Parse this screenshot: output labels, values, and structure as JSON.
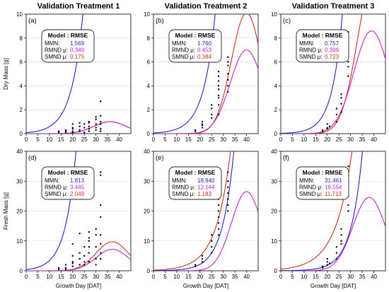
{
  "chart_data": [
    {
      "panel_label": "(a)",
      "title": "Validation Treatment 1",
      "type": "scatter",
      "ylabel": "Dry Mass [g]",
      "xlabel": "",
      "xlim": [
        0,
        45
      ],
      "ylim": [
        0,
        10
      ],
      "legend_header": "Model : RMSE",
      "series": [
        {
          "name": "MMN:",
          "value": "1.569",
          "color": "#2020c8"
        },
        {
          "name": "RMND μ:",
          "value": "0.349",
          "color": "#c020c8"
        },
        {
          "name": "SMND μ:",
          "value": "0.175",
          "color": "#c83020"
        }
      ],
      "points": [
        [
          14,
          0.1
        ],
        [
          14,
          0.2
        ],
        [
          17,
          0.2
        ],
        [
          17,
          0.1
        ],
        [
          17,
          0.3
        ],
        [
          20,
          0.2
        ],
        [
          20,
          0.5
        ],
        [
          20,
          0.8
        ],
        [
          20,
          0.4
        ],
        [
          20,
          0.1
        ],
        [
          23,
          0.2
        ],
        [
          23,
          0.6
        ],
        [
          23,
          0.9
        ],
        [
          23,
          0.3
        ],
        [
          25,
          0.1
        ],
        [
          25,
          0.8
        ],
        [
          25,
          0.5
        ],
        [
          27,
          0.2
        ],
        [
          27,
          0.6
        ],
        [
          27,
          1.0
        ],
        [
          27,
          0.9
        ],
        [
          27,
          0.4
        ],
        [
          30,
          0.3
        ],
        [
          30,
          0.8
        ],
        [
          30,
          1.2
        ],
        [
          30,
          1.4
        ],
        [
          30,
          0.5
        ],
        [
          32,
          0.4
        ],
        [
          32,
          1.0
        ],
        [
          32,
          1.5
        ],
        [
          32,
          2.7
        ],
        [
          32,
          0.8
        ],
        [
          32,
          0.2
        ]
      ],
      "curves": {
        "mmn": [
          0.08,
          0.198
        ],
        "rmnd": [
          1.0,
          36.0,
          7.0
        ],
        "smnd": [
          1.0,
          36.0,
          7.0
        ]
      }
    },
    {
      "panel_label": "(b)",
      "title": "Validation Treatment 2",
      "type": "scatter",
      "ylabel": "",
      "xlabel": "",
      "xlim": [
        0,
        45
      ],
      "ylim": [
        0,
        10
      ],
      "legend_header": "Model : RMSE",
      "series": [
        {
          "name": "MMN:",
          "value": "1.760",
          "color": "#2020c8"
        },
        {
          "name": "RMND μ:",
          "value": "0.453",
          "color": "#c020c8"
        },
        {
          "name": "SMND μ:",
          "value": "0.384",
          "color": "#c83020"
        }
      ],
      "points": [
        [
          18,
          0.3
        ],
        [
          18,
          0.2
        ],
        [
          21,
          0.8
        ],
        [
          21,
          0.5
        ],
        [
          21,
          1.0
        ],
        [
          21,
          0.7
        ],
        [
          25,
          1.6
        ],
        [
          25,
          2.1
        ],
        [
          25,
          2.4
        ],
        [
          25,
          1.3
        ],
        [
          28,
          3.2
        ],
        [
          28,
          4.0
        ],
        [
          28,
          4.4
        ],
        [
          28,
          2.4
        ],
        [
          28,
          3.0
        ],
        [
          28,
          4.8
        ],
        [
          28,
          5.2
        ],
        [
          28,
          1.6
        ],
        [
          28,
          3.7
        ],
        [
          32,
          4.0
        ],
        [
          32,
          5.0
        ],
        [
          32,
          6.0
        ],
        [
          32,
          6.4
        ],
        [
          32,
          5.7
        ],
        [
          32,
          4.5
        ],
        [
          32,
          3.5
        ]
      ],
      "curves": {
        "mmn": [
          0.054,
          0.197
        ],
        "rmnd": [
          7.0,
          40.0,
          7.0
        ],
        "smnd": [
          10.1,
          40.0,
          6.5
        ]
      }
    },
    {
      "panel_label": "(c)",
      "title": "Validation Treatment 3",
      "type": "scatter",
      "ylabel": "",
      "xlabel": "",
      "xlim": [
        0,
        45
      ],
      "ylim": [
        0,
        10
      ],
      "legend_header": "Model : RMSE",
      "series": [
        {
          "name": "MMN:",
          "value": "0.757",
          "color": "#2020c8"
        },
        {
          "name": "RMND μ:",
          "value": "0.399",
          "color": "#c020c8"
        },
        {
          "name": "SMND μ:",
          "value": "0.723",
          "color": "#c83020"
        }
      ],
      "points": [
        [
          18,
          0.2
        ],
        [
          18,
          0.3
        ],
        [
          20,
          0.5
        ],
        [
          20,
          0.8
        ],
        [
          20,
          0.4
        ],
        [
          21,
          0.6
        ],
        [
          24,
          1.0
        ],
        [
          24,
          1.6
        ],
        [
          24,
          2.1
        ],
        [
          26,
          2.5
        ],
        [
          26,
          3.0
        ],
        [
          26,
          1.8
        ],
        [
          26,
          3.3
        ],
        [
          29,
          6.0
        ],
        [
          29,
          7.2
        ],
        [
          29,
          5.6
        ],
        [
          29,
          8.5
        ],
        [
          29,
          4.8
        ],
        [
          29,
          6.8
        ]
      ],
      "curves": {
        "mmn": [
          0.026,
          0.225
        ],
        "rmnd": [
          8.6,
          39.0,
          7.5
        ],
        "smnd": [
          13.0,
          40.0,
          7.0
        ]
      }
    },
    {
      "panel_label": "(d)",
      "title": "",
      "type": "scatter",
      "ylabel": "Fresh Mass [g]",
      "xlabel": "Growth Day [DAT]",
      "xlim": [
        0,
        45
      ],
      "ylim": [
        0,
        40
      ],
      "legend_header": "Model : RMSE",
      "series": [
        {
          "name": "MMN:",
          "value": "1.813",
          "color": "#2020c8"
        },
        {
          "name": "RMND μ:",
          "value": "3.445",
          "color": "#c020c8"
        },
        {
          "name": "SMND μ:",
          "value": "2.049",
          "color": "#c83020"
        }
      ],
      "points": [
        [
          14,
          0.5
        ],
        [
          14,
          1.0
        ],
        [
          17,
          1.0
        ],
        [
          17,
          2.0
        ],
        [
          17,
          0.5
        ],
        [
          20,
          1.5
        ],
        [
          20,
          3.0
        ],
        [
          20,
          5.0
        ],
        [
          20,
          9.0
        ],
        [
          20,
          2.5
        ],
        [
          23,
          2.0
        ],
        [
          23,
          4.0
        ],
        [
          23,
          6.0
        ],
        [
          23,
          12.5
        ],
        [
          25,
          2.0
        ],
        [
          25,
          5.0
        ],
        [
          25,
          8.0
        ],
        [
          25,
          3.0
        ],
        [
          27,
          3.0
        ],
        [
          27,
          6.0
        ],
        [
          27,
          10.0
        ],
        [
          27,
          13.0
        ],
        [
          27,
          11.0
        ],
        [
          27,
          8.0
        ],
        [
          30,
          4.0
        ],
        [
          30,
          8.0
        ],
        [
          30,
          12.0
        ],
        [
          30,
          14.0
        ],
        [
          30,
          2.0
        ],
        [
          32,
          6.0
        ],
        [
          32,
          12.0
        ],
        [
          32,
          18.0
        ],
        [
          32,
          22.0
        ],
        [
          32,
          32.0
        ],
        [
          32,
          33.0
        ],
        [
          32,
          9.0
        ],
        [
          32,
          4.0
        ]
      ],
      "curves": {
        "mmn": [
          0.4,
          0.215
        ],
        "rmnd": [
          7.2,
          37.0,
          7.0
        ],
        "smnd": [
          9.7,
          37.0,
          7.0
        ]
      }
    },
    {
      "panel_label": "(e)",
      "title": "",
      "type": "scatter",
      "ylabel": "",
      "xlabel": "Growth Day [DAT]",
      "xlim": [
        0,
        45
      ],
      "ylim": [
        0,
        40
      ],
      "legend_header": "Model : RMSE",
      "series": [
        {
          "name": "MMN:",
          "value": "18.940",
          "color": "#2020c8"
        },
        {
          "name": "RMND μ:",
          "value": "12.144",
          "color": "#c020c8"
        },
        {
          "name": "SMND μ:",
          "value": "1.183",
          "color": "#c83020"
        }
      ],
      "points": [
        [
          18,
          1.5
        ],
        [
          18,
          2.0
        ],
        [
          21,
          4.0
        ],
        [
          21,
          5.0
        ],
        [
          21,
          3.0
        ],
        [
          25,
          8.0
        ],
        [
          25,
          10.0
        ],
        [
          25,
          12.0
        ],
        [
          25,
          6.0
        ],
        [
          28,
          14.0
        ],
        [
          28,
          18.0
        ],
        [
          28,
          20.0
        ],
        [
          28,
          22.0
        ],
        [
          28,
          24.0
        ],
        [
          28,
          12.0
        ],
        [
          28,
          16.0
        ],
        [
          32,
          22.0
        ],
        [
          32,
          24.0
        ],
        [
          32,
          26.0
        ],
        [
          32,
          28.0
        ],
        [
          32,
          30.0
        ],
        [
          32,
          33.0
        ],
        [
          32,
          20.0
        ]
      ],
      "curves": {
        "mmn": [
          0.04,
          0.2
        ],
        "rmnd": [
          26.5,
          40.0,
          6.5
        ],
        "smnd": [
          0.2,
          0.16
        ]
      }
    },
    {
      "panel_label": "(f)",
      "title": "",
      "type": "scatter",
      "ylabel": "",
      "xlabel": "Growth Day [DAT]",
      "xlim": [
        0,
        45
      ],
      "ylim": [
        0,
        40
      ],
      "legend_header": "Model : RMSE",
      "series": [
        {
          "name": "MMN:",
          "value": "31.461",
          "color": "#2020c8"
        },
        {
          "name": "RMND μ:",
          "value": "19.554",
          "color": "#c020c8"
        },
        {
          "name": "SMND μ:",
          "value": "11.713",
          "color": "#c83020"
        }
      ],
      "points": [
        [
          18,
          1.0
        ],
        [
          18,
          1.5
        ],
        [
          20,
          2.0
        ],
        [
          20,
          3.0
        ],
        [
          20,
          4.0
        ],
        [
          21,
          2.5
        ],
        [
          24,
          4.0
        ],
        [
          24,
          6.0
        ],
        [
          24,
          8.0
        ],
        [
          26,
          9.0
        ],
        [
          26,
          12.0
        ],
        [
          26,
          14.0
        ],
        [
          26,
          10.0
        ],
        [
          29,
          20.0
        ],
        [
          29,
          25.0
        ],
        [
          29,
          28.0
        ],
        [
          29,
          30.0
        ],
        [
          29,
          35.0
        ],
        [
          29,
          22.0
        ]
      ],
      "curves": {
        "mmn": [
          0.03,
          0.205
        ],
        "rmnd": [
          24.6,
          38.0,
          7.0
        ],
        "smnd": [
          0.55,
          0.14
        ]
      }
    }
  ],
  "x_ticks": [
    0,
    5,
    10,
    15,
    20,
    25,
    30,
    35,
    40
  ],
  "y_ticks_dry": [
    0,
    2,
    4,
    6,
    8,
    10
  ],
  "y_ticks_fresh": [
    0,
    10,
    20,
    30,
    40
  ],
  "colors": {
    "mmn": "#2020c8",
    "rmnd": "#c020c8",
    "smnd": "#c83020",
    "points": "#000000",
    "grid": "#d4d4d4",
    "legend_border": "#222222"
  }
}
